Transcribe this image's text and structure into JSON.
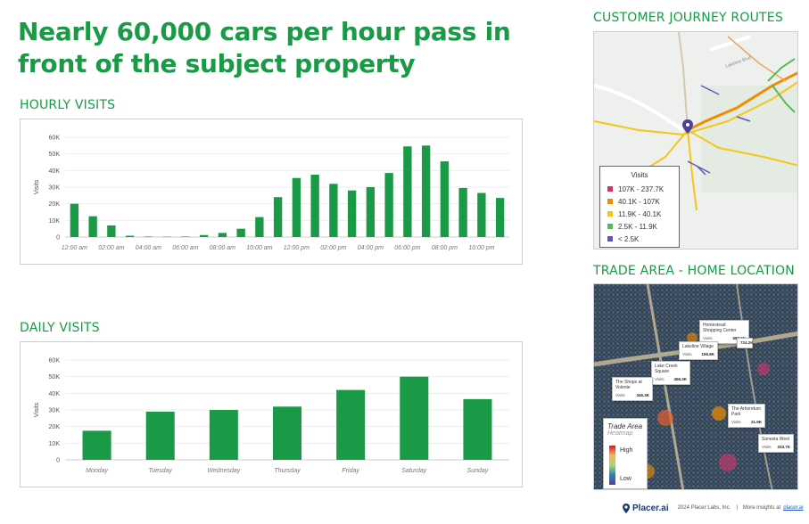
{
  "headline": "Nearly 60,000 cars per hour pass in front of the subject property",
  "sections": {
    "hourly": "HOURLY VISITS",
    "daily": "DAILY VISITS",
    "routes": "CUSTOMER JOURNEY ROUTES",
    "trade": "TRADE AREA - HOME LOCATION"
  },
  "colors": {
    "accent": "#1a9a47",
    "bar": "#1a9a47"
  },
  "chart_data": [
    {
      "type": "bar",
      "ylabel": "Visits",
      "ylim": [
        0,
        60000
      ],
      "yticks": [
        "0",
        "10K",
        "20K",
        "30K",
        "40K",
        "50K",
        "60K"
      ],
      "grid": true,
      "categories": [
        "12:00 am",
        "1:00 am",
        "02:00 am",
        "3:00 am",
        "04:00 am",
        "5:00 am",
        "06:00 am",
        "7:00 am",
        "08:00 am",
        "9:00 am",
        "10:00 am",
        "11:00 am",
        "12:00 pm",
        "1:00 pm",
        "02:00 pm",
        "3:00 pm",
        "04:00 pm",
        "5:00 pm",
        "06:00 pm",
        "7:00 pm",
        "08:00 pm",
        "9:00 pm",
        "10:00 pm",
        "11:00 pm"
      ],
      "xtick_labels": [
        "12:00 am",
        "",
        "02:00 am",
        "",
        "04:00 am",
        "",
        "06:00 am",
        "",
        "08:00 am",
        "",
        "10:00 am",
        "",
        "12:00 pm",
        "",
        "02:00 pm",
        "",
        "04:00 pm",
        "",
        "06:00 pm",
        "",
        "08:00 pm",
        "",
        "10:00 pm",
        ""
      ],
      "values": [
        20000,
        12500,
        7000,
        800,
        300,
        200,
        300,
        1200,
        2500,
        5000,
        12000,
        24000,
        35500,
        37500,
        32000,
        28000,
        30000,
        38500,
        54500,
        55000,
        45500,
        29500,
        26500,
        23500
      ]
    },
    {
      "type": "bar",
      "ylabel": "Visits",
      "ylim": [
        0,
        60000
      ],
      "yticks": [
        "0",
        "10K",
        "20K",
        "30K",
        "40K",
        "50K",
        "60K"
      ],
      "grid": true,
      "categories": [
        "Monday",
        "Tuesday",
        "Wednesday",
        "Thursday",
        "Friday",
        "Saturday",
        "Sunday"
      ],
      "values": [
        17500,
        29000,
        30000,
        32000,
        42000,
        50000,
        36500
      ]
    }
  ],
  "routes_legend": {
    "title": "Visits",
    "items": [
      {
        "label": "107K - 237.7K",
        "color": "#d6336c"
      },
      {
        "label": "40.1K - 107K",
        "color": "#f08c00"
      },
      {
        "label": "11.9K - 40.1K",
        "color": "#f5c518"
      },
      {
        "label": "2.5K - 11.9K",
        "color": "#5cb85c"
      },
      {
        "label": "< 2.5K",
        "color": "#5a5ab5"
      }
    ]
  },
  "map_labels": {
    "road_1": "Lakeline Blvd"
  },
  "trade_area": {
    "legend_title": "Trade Area",
    "legend_sub": "Heatmap",
    "high": "High",
    "low": "Low",
    "visits_word": "Visits",
    "pois": [
      {
        "name": "Homestead Shopping Center",
        "visits": "597.3K"
      },
      {
        "name": "Lakeline Village",
        "visits": "155.8K"
      },
      {
        "name": "Lake Creek Square",
        "visits": "456.3K"
      },
      {
        "name": "The Shops at Volente",
        "visits": "346.3K"
      },
      {
        "name": "The Arboretum Park",
        "visits": "31.9K"
      },
      {
        "name": "Sonesta West",
        "visits": "333.7K"
      },
      {
        "name": "724.2K",
        "visits": ""
      }
    ]
  },
  "footer": {
    "brand": "Placer.ai",
    "copyright": "2024 Placer Labs, Inc.",
    "separator": "|",
    "more": "More insights at",
    "link": "placer.ai"
  }
}
